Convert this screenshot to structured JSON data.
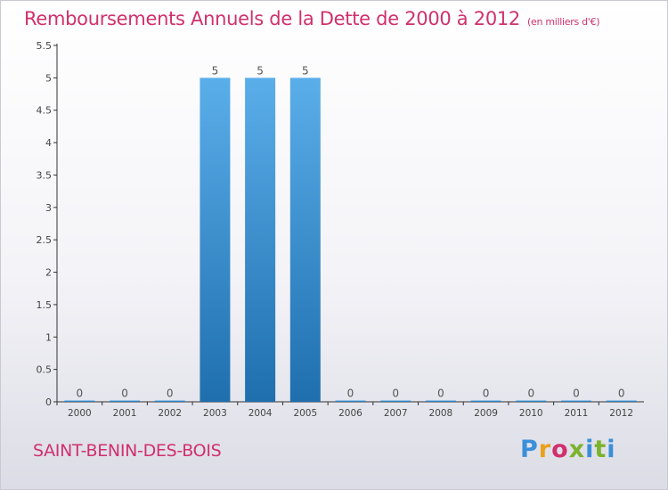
{
  "header": {
    "title": "Remboursements Annuels de la Dette de 2000 à 2012",
    "unit": "(en milliers d'€)"
  },
  "footer": {
    "commune": "SAINT-BENIN-DES-BOIS",
    "brand": "Proxiti"
  },
  "colors": {
    "title": "#d0306d",
    "bar_top": "#5aaeea",
    "bar_bottom": "#1f6fae",
    "axis": "#333333"
  },
  "chart_data": {
    "type": "bar",
    "categories": [
      "2000",
      "2001",
      "2002",
      "2003",
      "2004",
      "2005",
      "2006",
      "2007",
      "2008",
      "2009",
      "2010",
      "2011",
      "2012"
    ],
    "values": [
      0,
      0,
      0,
      5,
      5,
      5,
      0,
      0,
      0,
      0,
      0,
      0,
      0
    ],
    "data_labels": [
      "0",
      "0",
      "0",
      "5",
      "5",
      "5",
      "0",
      "0",
      "0",
      "0",
      "0",
      "0",
      "0"
    ],
    "ylim": [
      0,
      5.5
    ],
    "yticks": [
      0,
      0.5,
      1,
      1.5,
      2,
      2.5,
      3,
      3.5,
      4,
      4.5,
      5,
      5.5
    ],
    "ytick_labels": [
      "0",
      "0.5",
      "1",
      "1.5",
      "2",
      "2.5",
      "3",
      "3.5",
      "4",
      "4.5",
      "5",
      "5.5"
    ],
    "grid": false,
    "legend": "none"
  }
}
